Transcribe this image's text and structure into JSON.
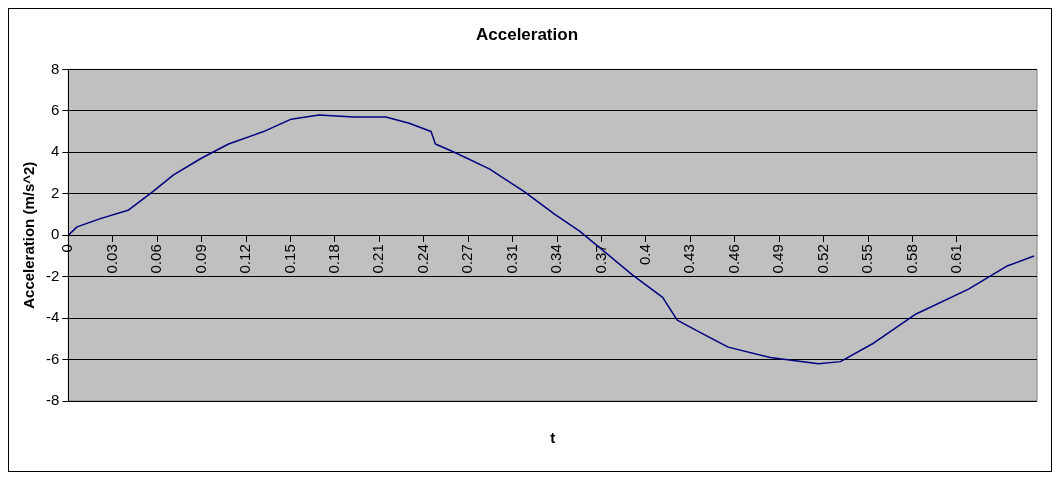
{
  "chart_data": {
    "type": "line",
    "title": "Acceleration",
    "xlabel": "t",
    "ylabel": "Acceleration (m/s^2)",
    "x": [
      0,
      0.006,
      0.022,
      0.041,
      0.058,
      0.072,
      0.091,
      0.11,
      0.134,
      0.153,
      0.172,
      0.196,
      0.218,
      0.234,
      0.249,
      0.252,
      0.265,
      0.289,
      0.313,
      0.334,
      0.351,
      0.387,
      0.408,
      0.418,
      0.434,
      0.453,
      0.482,
      0.515,
      0.53,
      0.553,
      0.582,
      0.618,
      0.644,
      0.663
    ],
    "series": [
      {
        "color": "#000080",
        "values": [
          0,
          0.4,
          0.8,
          1.2,
          2.1,
          2.9,
          3.7,
          4.4,
          5.0,
          5.6,
          5.8,
          5.7,
          5.7,
          5.4,
          5.0,
          4.4,
          4.0,
          3.2,
          2.1,
          1.0,
          0.2,
          -1.9,
          -3.0,
          -4.1,
          -4.7,
          -5.4,
          -5.9,
          -6.2,
          -6.1,
          -5.2,
          -3.8,
          -2.6,
          -1.5,
          -1.0
        ]
      }
    ],
    "xlim": [
      0,
      0.665
    ],
    "xticks": [
      0,
      {
        "value": 0.0305,
        "label": "0.03"
      },
      {
        "value": 0.061,
        "label": "0.06"
      },
      {
        "value": 0.0915,
        "label": "0.09"
      },
      {
        "value": 0.122,
        "label": "0.12"
      },
      {
        "value": 0.1525,
        "label": "0.15"
      },
      {
        "value": 0.183,
        "label": "0.18"
      },
      {
        "value": 0.2135,
        "label": "0.21"
      },
      {
        "value": 0.244,
        "label": "0.24"
      },
      {
        "value": 0.2745,
        "label": "0.27"
      },
      {
        "value": 0.305,
        "label": "0.31"
      },
      {
        "value": 0.3355,
        "label": "0.34"
      },
      {
        "value": 0.366,
        "label": "0.37"
      },
      {
        "value": 0.3965,
        "label": "0.4"
      },
      {
        "value": 0.427,
        "label": "0.43"
      },
      {
        "value": 0.4575,
        "label": "0.46"
      },
      {
        "value": 0.488,
        "label": "0.49"
      },
      {
        "value": 0.5185,
        "label": "0.52"
      },
      {
        "value": 0.549,
        "label": "0.55"
      },
      {
        "value": 0.5795,
        "label": "0.58"
      },
      {
        "value": 0.61,
        "label": "0.61"
      }
    ],
    "ylim": [
      -8,
      8
    ],
    "yticks": [
      -8,
      -6,
      -4,
      -2,
      0,
      2,
      4,
      6,
      8
    ],
    "grid": "y",
    "legend": false,
    "marker": "none",
    "line_style": "solid"
  }
}
